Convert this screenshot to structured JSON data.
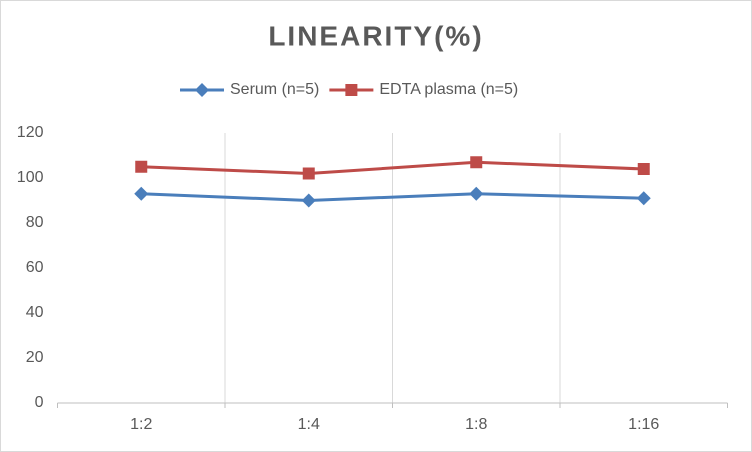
{
  "chart_data": {
    "type": "line",
    "title": "LINEARITY(%)",
    "categories": [
      "1:2",
      "1:4",
      "1:8",
      "1:16"
    ],
    "series": [
      {
        "name": "Serum (n=5)",
        "color": "#4a7ebb",
        "marker": "diamond",
        "values": [
          93,
          90,
          93,
          91
        ]
      },
      {
        "name": "EDTA plasma (n=5)",
        "color": "#be4b48",
        "marker": "square",
        "values": [
          105,
          102,
          107,
          104
        ]
      }
    ],
    "ylim": [
      0,
      120
    ],
    "yticks": [
      0,
      20,
      40,
      60,
      80,
      100,
      120
    ],
    "grid": "vertical",
    "legend": "top"
  }
}
